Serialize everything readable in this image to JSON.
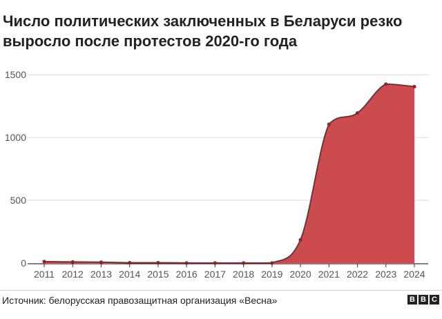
{
  "title": "Число политических заключенных в Беларуси резко выросло после протестов 2020-го года",
  "source": "Источник: белорусская правозащитная организация «Весна»",
  "logo": {
    "letters": [
      "B",
      "B",
      "C"
    ]
  },
  "colors": {
    "area_fill": "#cc4b4f",
    "line": "#a31e23",
    "grid": "#d9d9d9",
    "axis": "#333333"
  },
  "chart_data": {
    "type": "area",
    "title": "Число политических заключенных в Беларуси резко выросло после протестов 2020-го года",
    "xlabel": "",
    "ylabel": "",
    "x": [
      "2011",
      "2012",
      "2013",
      "2014",
      "2015",
      "2016",
      "2017",
      "2018",
      "2019",
      "2020",
      "2021",
      "2022",
      "2023",
      "2024"
    ],
    "series": [
      {
        "values": [
          12,
          9,
          7,
          3,
          3,
          1,
          1,
          1,
          1,
          185,
          1105,
          1195,
          1425,
          1405
        ]
      }
    ],
    "ylim": [
      0,
      1600
    ],
    "yticks": [
      "0",
      "500",
      "1000",
      "1500"
    ],
    "grid": true
  }
}
